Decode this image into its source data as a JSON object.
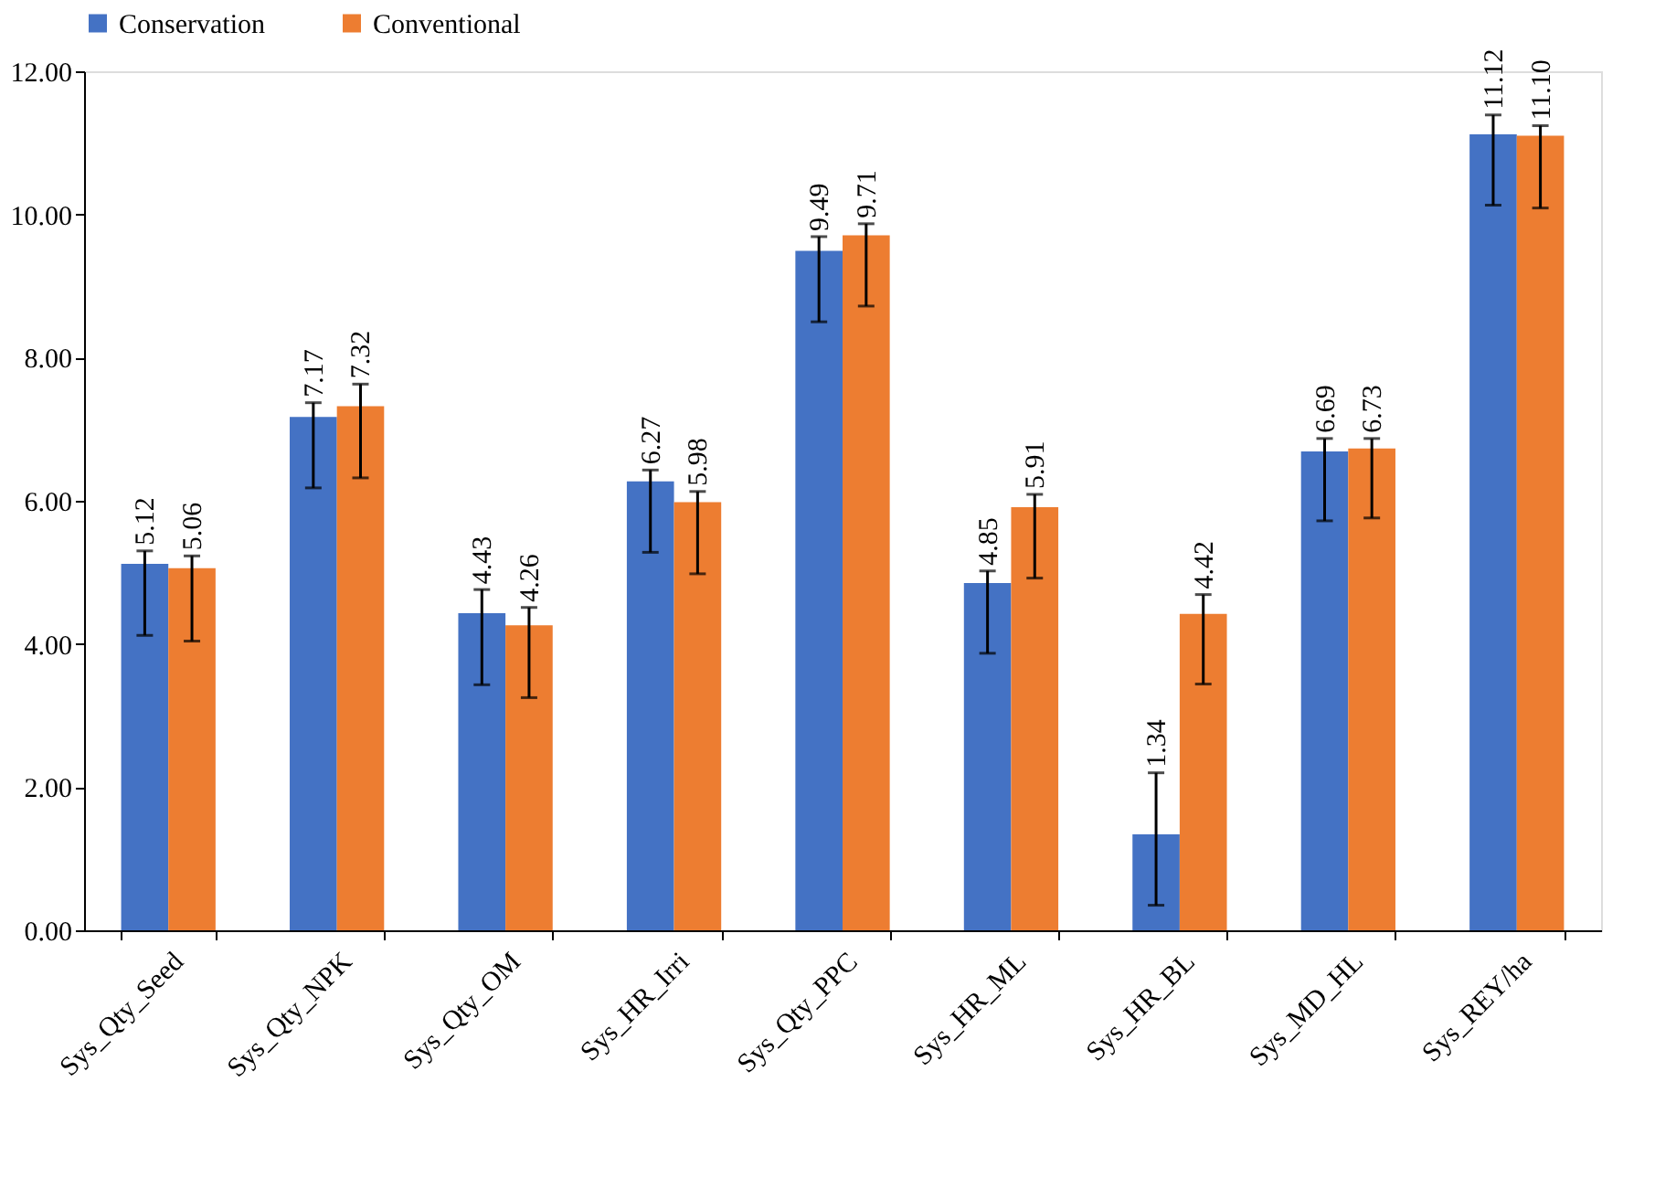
{
  "chart_data": {
    "type": "bar",
    "categories": [
      "Sys_Qty_Seed",
      "Sys_Qty_NPK",
      "Sys_Qty_OM",
      "Sys_HR_Irri",
      "Sys_Qty_PPC",
      "Sys_HR_ML",
      "Sys_HR_BL",
      "Sys_MD_HL",
      "Sys_REY/ha"
    ],
    "series": [
      {
        "name": "Conservation",
        "color": "#4472c4",
        "values": [
          5.12,
          7.17,
          4.43,
          6.27,
          9.49,
          4.85,
          1.34,
          6.69,
          11.12
        ],
        "value_labels": [
          "5.12",
          "7.17",
          "4.43",
          "6.27",
          "9.49",
          "4.85",
          "1.34",
          "6.69",
          "11.12"
        ],
        "errors": [
          [
            4.12,
            5.3
          ],
          [
            6.18,
            7.37
          ],
          [
            3.43,
            4.76
          ],
          [
            5.28,
            6.43
          ],
          [
            8.5,
            9.69
          ],
          [
            3.87,
            5.02
          ],
          [
            0.35,
            2.2
          ],
          [
            5.72,
            6.87
          ],
          [
            10.13,
            11.39
          ]
        ]
      },
      {
        "name": "Conventional",
        "color": "#ed7d31",
        "values": [
          5.06,
          7.32,
          4.26,
          5.98,
          9.71,
          5.91,
          4.42,
          6.73,
          11.1
        ],
        "value_labels": [
          "5.06",
          "7.32",
          "4.26",
          "5.98",
          "9.71",
          "5.91",
          "4.42",
          "6.73",
          "11.10"
        ],
        "errors": [
          [
            4.04,
            5.23
          ],
          [
            6.32,
            7.63
          ],
          [
            3.25,
            4.51
          ],
          [
            4.98,
            6.13
          ],
          [
            8.72,
            9.87
          ],
          [
            4.92,
            6.09
          ],
          [
            3.44,
            4.69
          ],
          [
            5.76,
            6.87
          ],
          [
            10.09,
            11.24
          ]
        ]
      }
    ],
    "ylim": [
      0,
      12
    ],
    "yticks": [
      {
        "value": 0,
        "label": "0.00"
      },
      {
        "value": 2,
        "label": "2.00"
      },
      {
        "value": 4,
        "label": "4.00"
      },
      {
        "value": 6,
        "label": "6.00"
      },
      {
        "value": 8,
        "label": "8.00"
      },
      {
        "value": 10,
        "label": "10.00"
      },
      {
        "value": 12,
        "label": "12.00"
      }
    ],
    "grid": false,
    "legend": "top"
  }
}
